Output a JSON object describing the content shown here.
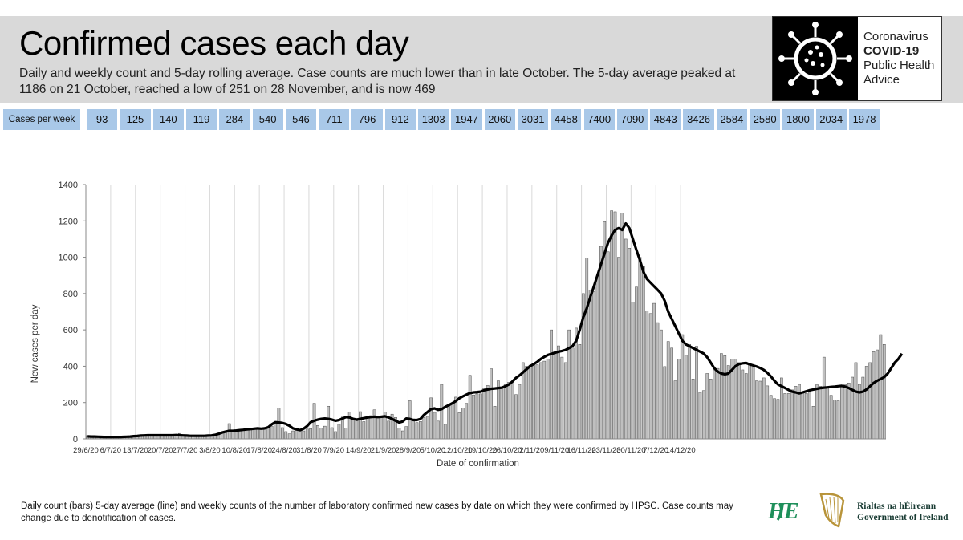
{
  "header": {
    "title": "Confirmed cases each day",
    "subtitle": "Daily and weekly count and 5-day rolling average. Case counts are much lower than in late October. The 5-day average peaked at 1186 on 21 October, reached a low of 251 on 28 November, and is now 469"
  },
  "logo": {
    "line1": "Coronavirus",
    "line2": "COVID-19",
    "line3": "Public Health",
    "line4": "Advice"
  },
  "weekly": {
    "label": "Cases per week",
    "values": [
      "93",
      "125",
      "140",
      "119",
      "284",
      "540",
      "546",
      "711",
      "796",
      "912",
      "1303",
      "1947",
      "2060",
      "3031",
      "4458",
      "7400",
      "7090",
      "4843",
      "3426",
      "2584",
      "2580",
      "1800",
      "2034",
      "1978"
    ]
  },
  "chart_data": {
    "type": "bar",
    "xlabel": "Date of confirmation",
    "ylabel": "New cases per day",
    "ylim": [
      0,
      1400
    ],
    "yticks": [
      0,
      200,
      400,
      600,
      800,
      1000,
      1200,
      1400
    ],
    "x_tick_labels": [
      "29/6/20",
      "6/7/20",
      "13/7/20",
      "20/7/20",
      "27/7/20",
      "3/8/20",
      "10/8/20",
      "17/8/20",
      "24/8/20",
      "31/8/20",
      "7/9/20",
      "14/9/20",
      "21/9/20",
      "28/9/20",
      "5/10/20",
      "12/10/20",
      "19/10/20",
      "26/10/20",
      "2/11/20",
      "9/11/20",
      "16/11/20",
      "23/11/20",
      "30/11/20",
      "7/12/20",
      "14/12/20"
    ],
    "start_date": "29/6/20",
    "series": [
      {
        "name": "Daily count",
        "kind": "bar",
        "values": [
          18,
          12,
          14,
          16,
          10,
          8,
          12,
          10,
          8,
          10,
          10,
          12,
          14,
          18,
          16,
          20,
          22,
          20,
          24,
          18,
          22,
          20,
          14,
          24,
          18,
          20,
          30,
          16,
          18,
          14,
          16,
          20,
          18,
          12,
          14,
          18,
          20,
          24,
          40,
          36,
          84,
          40,
          42,
          48,
          50,
          52,
          54,
          58,
          60,
          52,
          56,
          62,
          70,
          96,
          170,
          62,
          40,
          28,
          44,
          52,
          48,
          44,
          54,
          56,
          196,
          74,
          60,
          70,
          180,
          62,
          40,
          80,
          120,
          60,
          148,
          110,
          100,
          150,
          95,
          112,
          128,
          160,
          118,
          124,
          148,
          98,
          136,
          118,
          60,
          44,
          68,
          210,
          110,
          90,
          96,
          118,
          124,
          226,
          146,
          98,
          300,
          80,
          188,
          196,
          230,
          144,
          170,
          196,
          350,
          242,
          248,
          248,
          278,
          294,
          386,
          180,
          320,
          278,
          300,
          312,
          316,
          244,
          300,
          420,
          400,
          406,
          414,
          408,
          420,
          428,
          440,
          600,
          480,
          512,
          450,
          420,
          600,
          500,
          610,
          520,
          800,
          996,
          820,
          812,
          886,
          1060,
          1196,
          1030,
          1256,
          1250,
          1000,
          1244,
          1100,
          1050,
          754,
          836,
          1000,
          948,
          704,
          690,
          746,
          640,
          600,
          398,
          536,
          500,
          320,
          440,
          574,
          460,
          520,
          330,
          510,
          256,
          266,
          360,
          330,
          380,
          388,
          470,
          458,
          404,
          440,
          440,
          420,
          380,
          360,
          412,
          394,
          320,
          318,
          336,
          292,
          240,
          222,
          218,
          336,
          250,
          250,
          270,
          290,
          300,
          256,
          250,
          270,
          180,
          298,
          290,
          450,
          282,
          240,
          214,
          210,
          296,
          300,
          308,
          340,
          420,
          300,
          340,
          400,
          420,
          480,
          490,
          574,
          520
        ]
      },
      {
        "name": "5-day average",
        "kind": "line",
        "values": [
          14,
          13,
          13,
          12,
          11,
          10,
          10,
          10,
          10,
          10,
          11,
          12,
          13,
          15,
          16,
          18,
          19,
          20,
          20,
          20,
          20,
          20,
          20,
          20,
          20,
          21,
          20,
          19,
          18,
          17,
          17,
          17,
          17,
          17,
          18,
          19,
          22,
          28,
          35,
          40,
          44,
          44,
          46,
          48,
          50,
          52,
          54,
          56,
          58,
          56,
          58,
          64,
          80,
          92,
          90,
          88,
          82,
          72,
          58,
          52,
          48,
          56,
          70,
          92,
          100,
          106,
          110,
          112,
          110,
          106,
          100,
          104,
          112,
          120,
          118,
          110,
          106,
          110,
          114,
          118,
          120,
          122,
          120,
          122,
          124,
          118,
          110,
          100,
          90,
          96,
          112,
          110,
          104,
          104,
          110,
          132,
          148,
          164,
          168,
          160,
          164,
          176,
          186,
          196,
          208,
          224,
          234,
          244,
          252,
          256,
          258,
          260,
          268,
          272,
          276,
          278,
          280,
          282,
          290,
          300,
          316,
          336,
          350,
          366,
          384,
          400,
          412,
          424,
          440,
          452,
          462,
          468,
          474,
          480,
          484,
          490,
          500,
          512,
          540,
          600,
          668,
          720,
          780,
          840,
          900,
          960,
          1020,
          1080,
          1120,
          1150,
          1160,
          1150,
          1186,
          1160,
          1100,
          1040,
          984,
          920,
          880,
          860,
          840,
          820,
          800,
          760,
          700,
          660,
          620,
          580,
          540,
          520,
          510,
          500,
          490,
          480,
          470,
          450,
          420,
          390,
          370,
          360,
          356,
          360,
          380,
          400,
          412,
          416,
          418,
          410,
          404,
          398,
          390,
          380,
          364,
          344,
          320,
          300,
          290,
          280,
          270,
          260,
          256,
          251,
          256,
          262,
          268,
          272,
          276,
          280,
          282,
          284,
          286,
          288,
          290,
          292,
          288,
          280,
          270,
          260,
          256,
          260,
          272,
          290,
          308,
          320,
          330,
          340,
          360,
          390,
          420,
          440,
          469
        ]
      }
    ]
  },
  "footnote": "Daily count (bars) 5-day average (line) and weekly counts of the number of laboratory confirmed new cases by date on which they were confirmed by HPSC. Case counts may change due to denotification of cases.",
  "gov": {
    "line1": "Rialtas na hÉireann",
    "line2": "Government of Ireland"
  },
  "colors": {
    "bar_fill": "#bfbfbf",
    "bar_stroke": "#4d4d4d",
    "line": "#000000",
    "weekly_bg": "#a9c8e8",
    "header_bg": "#d9d9d9"
  }
}
